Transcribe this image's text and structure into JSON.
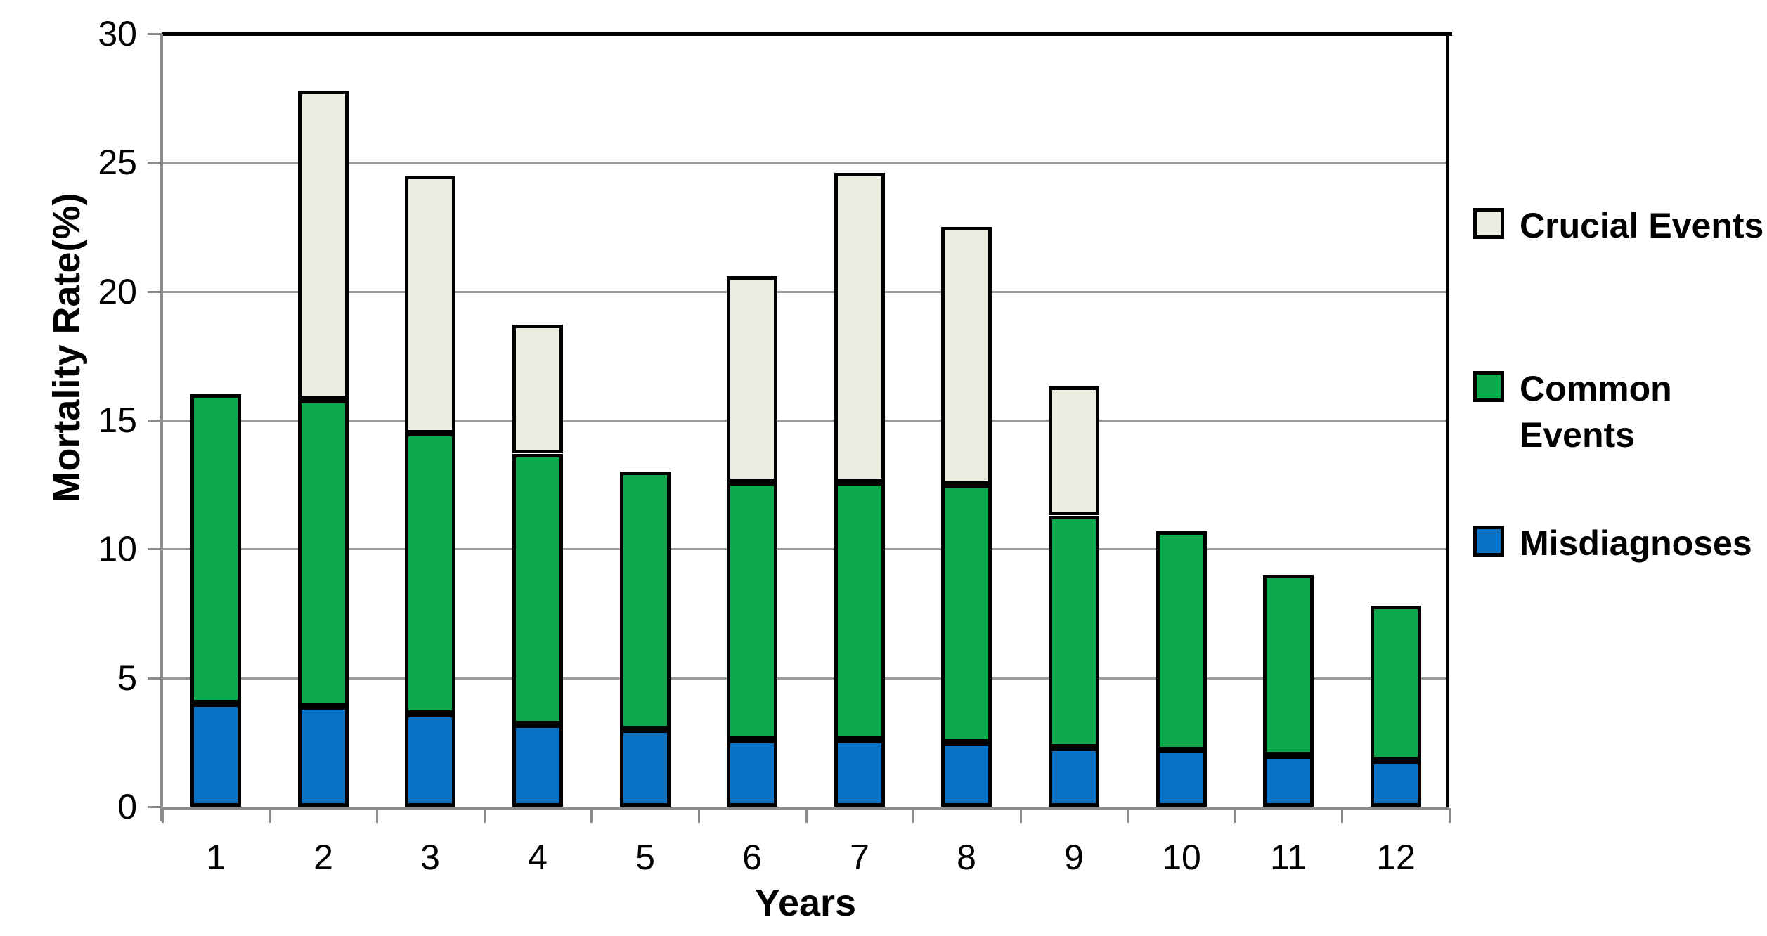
{
  "chart_data": {
    "type": "bar",
    "stacked": true,
    "title": "",
    "xlabel": "Years",
    "ylabel": "Mortality Rate(%)",
    "categories": [
      "1",
      "2",
      "3",
      "4",
      "5",
      "6",
      "7",
      "8",
      "9",
      "10",
      "11",
      "12"
    ],
    "series": [
      {
        "name": "Misdiagnoses",
        "color": "#0A72C4",
        "values": [
          4.0,
          3.9,
          3.6,
          3.2,
          3.0,
          2.6,
          2.6,
          2.5,
          2.3,
          2.2,
          2.0,
          1.8
        ]
      },
      {
        "name": "Common Events",
        "color": "#0BA94C",
        "values": [
          12.0,
          11.9,
          10.9,
          10.5,
          10.0,
          10.0,
          10.0,
          10.0,
          9.0,
          8.5,
          7.0,
          6.0
        ]
      },
      {
        "name": "Crucial Events",
        "color": "#EDECE1",
        "values": [
          0,
          12.0,
          10.0,
          5.0,
          0,
          8.0,
          12.0,
          10.0,
          5.0,
          0,
          0,
          0
        ]
      }
    ],
    "stack_totals": [
      16.0,
      27.8,
      24.5,
      18.7,
      13.0,
      20.6,
      24.6,
      22.5,
      16.3,
      10.7,
      9.0,
      7.8
    ],
    "ylim": [
      0,
      30
    ],
    "yticks": [
      "0",
      "5",
      "10",
      "15",
      "20",
      "25",
      "30"
    ],
    "grid": true,
    "legend_position": "right"
  },
  "legend": {
    "items": [
      {
        "label": "Crucial Events",
        "color": "#EDECE1"
      },
      {
        "label": "Common Events",
        "color": "#0BA94C"
      },
      {
        "label": "Misdiagnoses",
        "color": "#0A72C4"
      }
    ]
  },
  "colors": {
    "bar_border": "#000000",
    "gridline": "#9B9B9B",
    "axis": "#8C8C8C",
    "text": "#000000",
    "background": "#FFFFFF"
  }
}
